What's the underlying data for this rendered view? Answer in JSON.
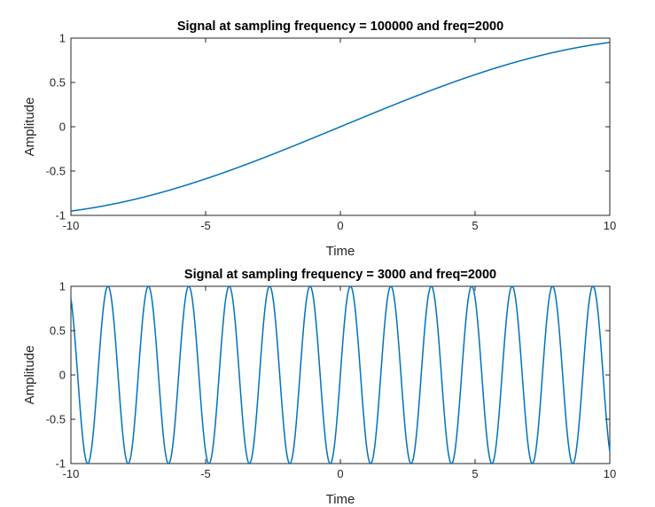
{
  "chart_data": [
    {
      "type": "line",
      "title": "Signal at sampling frequency = 100000 and freq=2000",
      "xlabel": "Time",
      "ylabel": "Amplitude",
      "xlim": [
        -10,
        10
      ],
      "ylim": [
        -1,
        1
      ],
      "xticks": [
        "-10",
        "-5",
        "0",
        "5",
        "10"
      ],
      "yticks": [
        "1",
        "0.5",
        "0",
        "-0.5",
        "-1"
      ],
      "grid": false,
      "series": [
        {
          "color": "#0072BD",
          "function": "sin",
          "sampling_frequency": 100000,
          "freq": 2000,
          "x_range": [
            -10,
            10
          ]
        }
      ]
    },
    {
      "type": "line",
      "title": "Signal at sampling frequency = 3000 and freq=2000",
      "xlabel": "Time",
      "ylabel": "Amplitude",
      "xlim": [
        -10,
        10
      ],
      "ylim": [
        -1,
        1
      ],
      "xticks": [
        "-10",
        "-5",
        "0",
        "5",
        "10"
      ],
      "yticks": [
        "1",
        "0.5",
        "0",
        "-0.5",
        "-1"
      ],
      "grid": false,
      "series": [
        {
          "color": "#0072BD",
          "function": "sin",
          "sampling_frequency": 3000,
          "freq": 2000,
          "x_range": [
            -10,
            10
          ]
        }
      ]
    }
  ]
}
